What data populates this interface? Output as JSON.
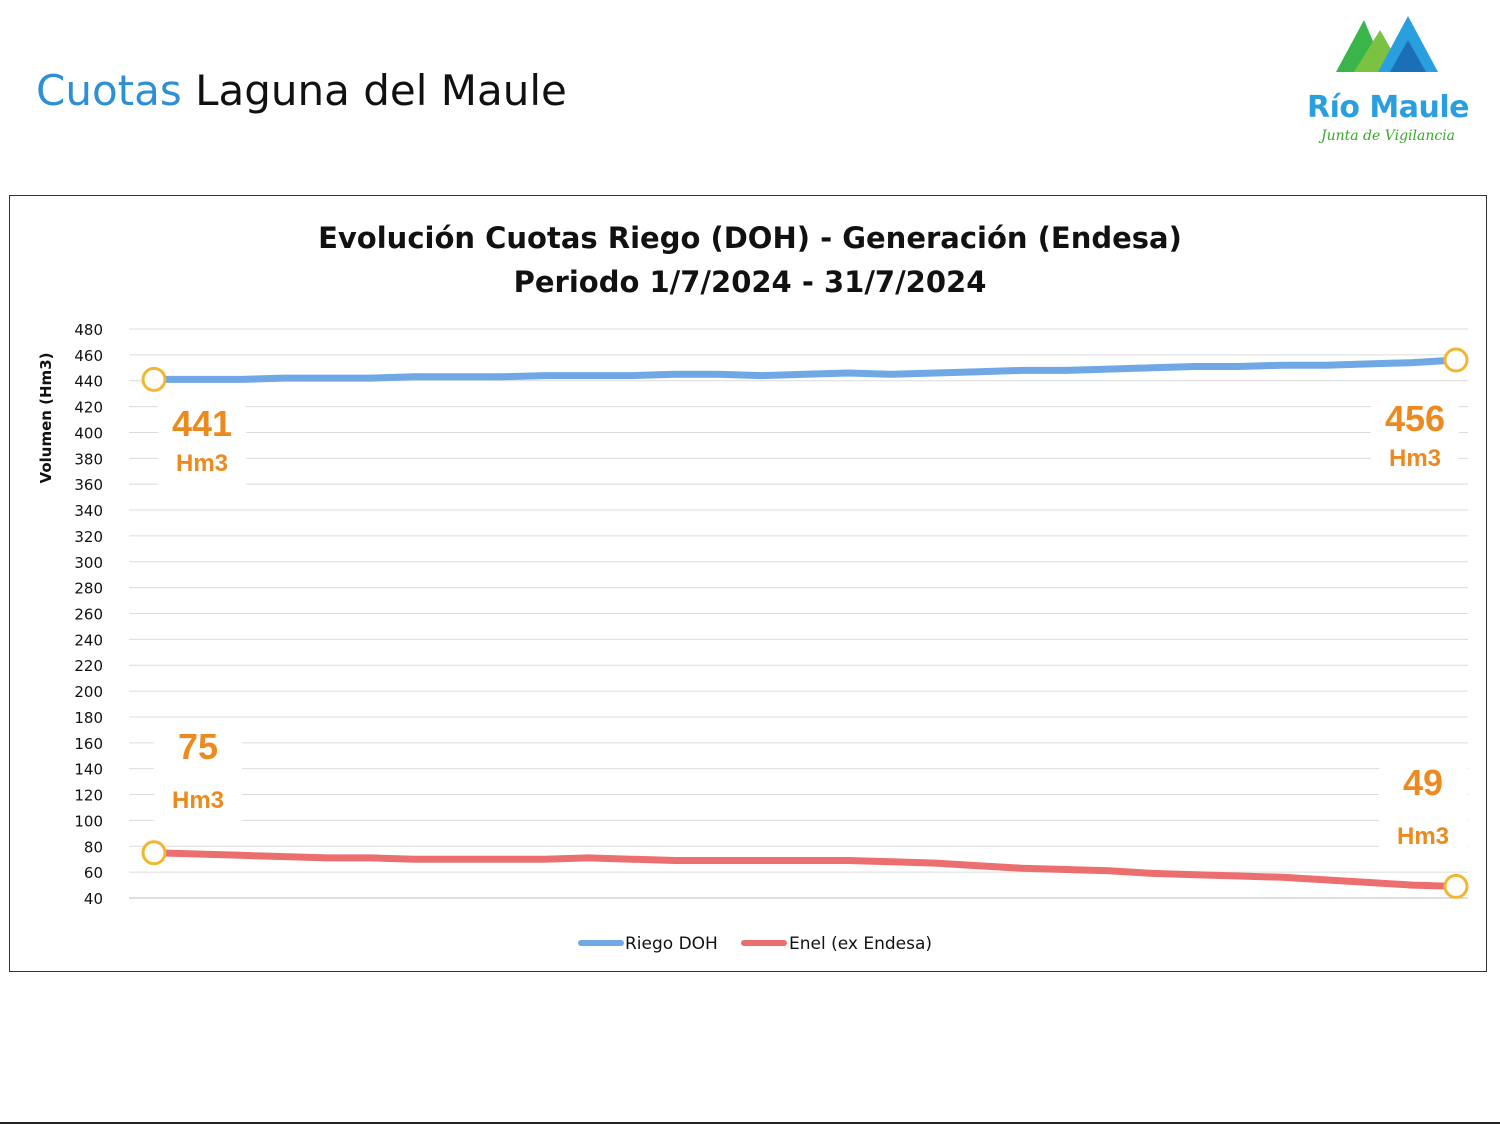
{
  "header": {
    "title_part1": "Cuotas",
    "title_part2": "Laguna del Maule"
  },
  "logo": {
    "name": "Río Maule",
    "subtitle": "Junta de Vigilancia",
    "colors": {
      "green": "#39b54a",
      "blue": "#2a9fe0"
    }
  },
  "chart_data": {
    "type": "line",
    "title": "Evolución Cuotas Riego (DOH) - Generación (Endesa)",
    "subtitle": "Periodo 1/7/2024 - 31/7/2024",
    "ylabel": "Volumen (Hm3)",
    "xlabel": "",
    "ylim": [
      40,
      480
    ],
    "yticks": [
      40,
      60,
      80,
      100,
      120,
      140,
      160,
      180,
      200,
      220,
      240,
      260,
      280,
      300,
      320,
      340,
      360,
      380,
      400,
      420,
      440,
      460,
      480
    ],
    "x": [
      1,
      2,
      3,
      4,
      5,
      6,
      7,
      8,
      9,
      10,
      11,
      12,
      13,
      14,
      15,
      16,
      17,
      18,
      19,
      20,
      21,
      22,
      23,
      24,
      25,
      26,
      27,
      28,
      29,
      30,
      31
    ],
    "grid": true,
    "legend_position": "bottom",
    "series": [
      {
        "name": "Riego DOH",
        "color": "#6fa8e4",
        "values": [
          441,
          441,
          441,
          442,
          442,
          442,
          443,
          443,
          443,
          444,
          444,
          444,
          445,
          445,
          444,
          445,
          446,
          445,
          446,
          447,
          448,
          448,
          449,
          450,
          451,
          451,
          452,
          452,
          453,
          454,
          456
        ]
      },
      {
        "name": "Enel (ex Endesa)",
        "color": "#ec6f6f",
        "values": [
          75,
          74,
          73,
          72,
          71,
          71,
          70,
          70,
          70,
          70,
          71,
          70,
          69,
          69,
          69,
          69,
          69,
          68,
          67,
          65,
          63,
          62,
          61,
          59,
          58,
          57,
          56,
          54,
          52,
          50,
          49
        ]
      }
    ],
    "annotations": [
      {
        "value": "441",
        "unit": "Hm3"
      },
      {
        "value": "456",
        "unit": "Hm3"
      },
      {
        "value": "75",
        "unit": "Hm3"
      },
      {
        "value": "49",
        "unit": "Hm3"
      }
    ],
    "annotation_color": "#ed8a1f"
  }
}
